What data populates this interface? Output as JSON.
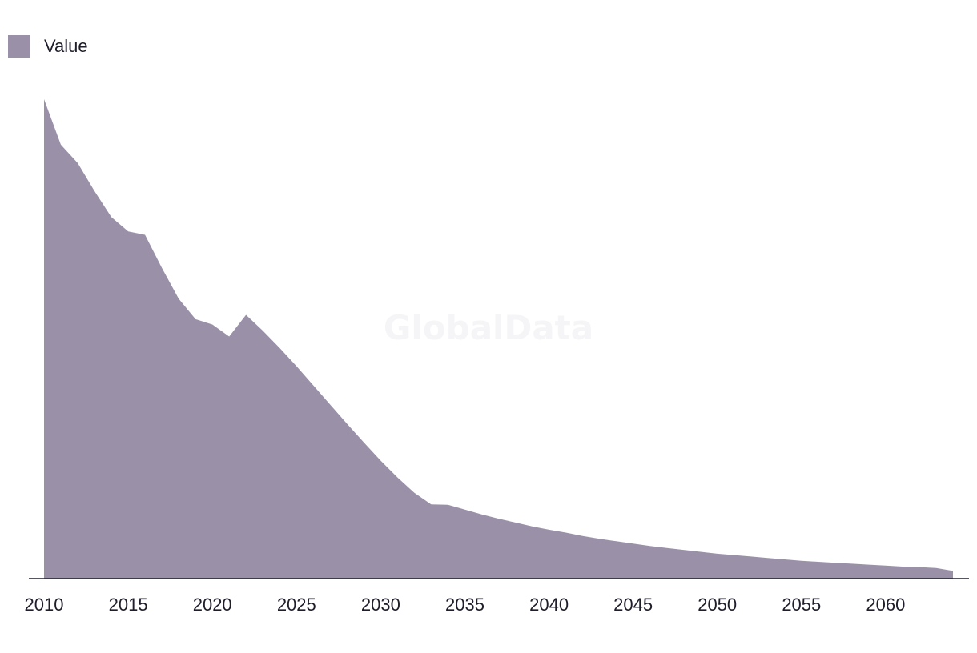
{
  "chart_data": {
    "type": "area",
    "title": "",
    "xlabel": "",
    "ylabel": "",
    "legend": {
      "position": "top-left",
      "entries": [
        "Value"
      ]
    },
    "grid": false,
    "y_axis_labels_shown": false,
    "xlim": [
      2010,
      2064
    ],
    "ylim": [
      0,
      100
    ],
    "x_ticks": [
      2010,
      2015,
      2020,
      2025,
      2030,
      2035,
      2040,
      2045,
      2050,
      2055,
      2060
    ],
    "series": [
      {
        "name": "Value",
        "color": "#9a91a9",
        "x": [
          2010,
          2011,
          2012,
          2013,
          2014,
          2015,
          2016,
          2017,
          2018,
          2019,
          2020,
          2021,
          2022,
          2023,
          2024,
          2025,
          2026,
          2027,
          2028,
          2029,
          2030,
          2031,
          2032,
          2033,
          2034,
          2035,
          2036,
          2037,
          2038,
          2039,
          2040,
          2041,
          2042,
          2043,
          2044,
          2045,
          2046,
          2047,
          2048,
          2049,
          2050,
          2051,
          2052,
          2053,
          2054,
          2055,
          2056,
          2057,
          2058,
          2059,
          2060,
          2061,
          2062,
          2063,
          2064
        ],
        "y": [
          100,
          90.5,
          86.7,
          80.8,
          75.4,
          72.4,
          71.7,
          64.8,
          58.4,
          54.1,
          53,
          50.5,
          55,
          51.7,
          48.1,
          44.3,
          40.3,
          36.3,
          32.3,
          28.4,
          24.6,
          21.1,
          17.9,
          15.5,
          15.4,
          14.4,
          13.4,
          12.5,
          11.7,
          10.9,
          10.2,
          9.6,
          8.9,
          8.3,
          7.8,
          7.3,
          6.8,
          6.4,
          6,
          5.6,
          5.2,
          4.9,
          4.6,
          4.3,
          4,
          3.7,
          3.5,
          3.3,
          3.1,
          2.9,
          2.7,
          2.5,
          2.4,
          2.2,
          1.6
        ]
      }
    ],
    "watermark": "GlobalData"
  }
}
